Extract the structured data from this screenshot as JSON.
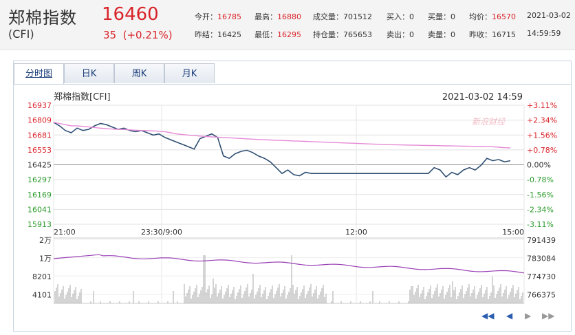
{
  "header": {
    "name": "郑棉指数",
    "code": "(CFI)",
    "price": "16460",
    "change": "35",
    "change_pct": "(+0.21%)",
    "quotes": [
      {
        "label": "今开：",
        "value": "16785",
        "color": "red"
      },
      {
        "label": "最高：",
        "value": "16880",
        "color": "red"
      },
      {
        "label": "成交量：",
        "value": "701512",
        "color": "plain"
      },
      {
        "label": "买入：",
        "value": "0",
        "color": "plain"
      },
      {
        "label": "买量：",
        "value": "0",
        "color": "plain"
      },
      {
        "label": "均价：",
        "value": "16570",
        "color": "red"
      },
      {
        "label": "",
        "value": "2021-03-02",
        "color": "plain"
      },
      {
        "label": "昨结：",
        "value": "16425",
        "color": "plain"
      },
      {
        "label": "最低：",
        "value": "16295",
        "color": "red"
      },
      {
        "label": "持仓量：",
        "value": "765653",
        "color": "plain"
      },
      {
        "label": "卖出：",
        "value": "0",
        "color": "plain"
      },
      {
        "label": "卖量：",
        "value": "0",
        "color": "plain"
      },
      {
        "label": "昨收：",
        "value": "16715",
        "color": "plain"
      },
      {
        "label": "",
        "value": "14:59:59",
        "color": "plain"
      }
    ]
  },
  "tabs": [
    "分时图",
    "日K",
    "周K",
    "月K"
  ],
  "chart": {
    "title": "郑棉指数[CFI]",
    "datetime": "2021-03-02 14:59",
    "watermark": "新浪财经",
    "price_ticks": [
      "16937",
      "16809",
      "16681",
      "16553",
      "16425",
      "16297",
      "16169",
      "16041",
      "15913"
    ],
    "pct_ticks": [
      "+3.11%",
      "+2.34%",
      "+1.56%",
      "+0.78%",
      "0.00%",
      "-0.78%",
      "-1.56%",
      "-2.34%",
      "-3.11%"
    ],
    "time_ticks": [
      "21:00",
      "23:30/9:00",
      "12:00",
      "15:00"
    ],
    "vol_ticks_left": [
      "2万",
      "1万",
      "8201",
      "4101"
    ],
    "vol_ticks_right": [
      "791439",
      "783084",
      "774730",
      "766375"
    ]
  },
  "chart_data": {
    "type": "line",
    "price_range": [
      15913,
      16937
    ],
    "base": 16425,
    "series": [
      {
        "values": [
          16790,
          16760,
          16720,
          16700,
          16740,
          16720,
          16730,
          16760,
          16780,
          16770,
          16750,
          16730,
          16740,
          16720,
          16710,
          16720,
          16700,
          16680,
          16690,
          16660,
          16640,
          16620,
          16600,
          16580,
          16560,
          16650,
          16670,
          16690,
          16660,
          16500,
          16480,
          16520,
          16540,
          16550,
          16530,
          16500,
          16480,
          16450,
          16400,
          16350,
          16380,
          16340,
          16330,
          16360,
          16350,
          16350,
          16350,
          16350,
          16350,
          16350,
          16350,
          16350,
          16350,
          16350,
          16350,
          16350,
          16350,
          16350,
          16350,
          16350,
          16350,
          16350,
          16350,
          16350,
          16350,
          16400,
          16380,
          16320,
          16360,
          16340,
          16380,
          16400,
          16380,
          16420,
          16480,
          16460,
          16470,
          16450,
          16460
        ]
      },
      {
        "values": [
          16790,
          16780,
          16770,
          16760,
          16760,
          16755,
          16750,
          16745,
          16740,
          16735,
          16732,
          16730,
          16728,
          16725,
          16722,
          16720,
          16718,
          16716,
          16714,
          16710,
          16700,
          16690,
          16685,
          16680,
          16676,
          16672,
          16668,
          16665,
          16662,
          16660,
          16657,
          16654,
          16651,
          16648,
          16645,
          16642,
          16640,
          16638,
          16636,
          16634,
          16632,
          16630,
          16628,
          16626,
          16624,
          16622,
          16620,
          16618,
          16616,
          16614,
          16612,
          16610,
          16608,
          16606,
          16604,
          16602,
          16600,
          16598,
          16597,
          16596,
          16595,
          16594,
          16593,
          16592,
          16591,
          16590,
          16589,
          16588,
          16587,
          16586,
          16585,
          16584,
          16583,
          16582,
          16581,
          16580,
          16576,
          16572,
          16570
        ]
      }
    ],
    "oi_range": [
      766375,
      791439
    ],
    "volume_range": [
      0,
      20000
    ]
  },
  "nav": [
    "◀◀",
    "◀",
    "▶",
    "▶▶"
  ]
}
